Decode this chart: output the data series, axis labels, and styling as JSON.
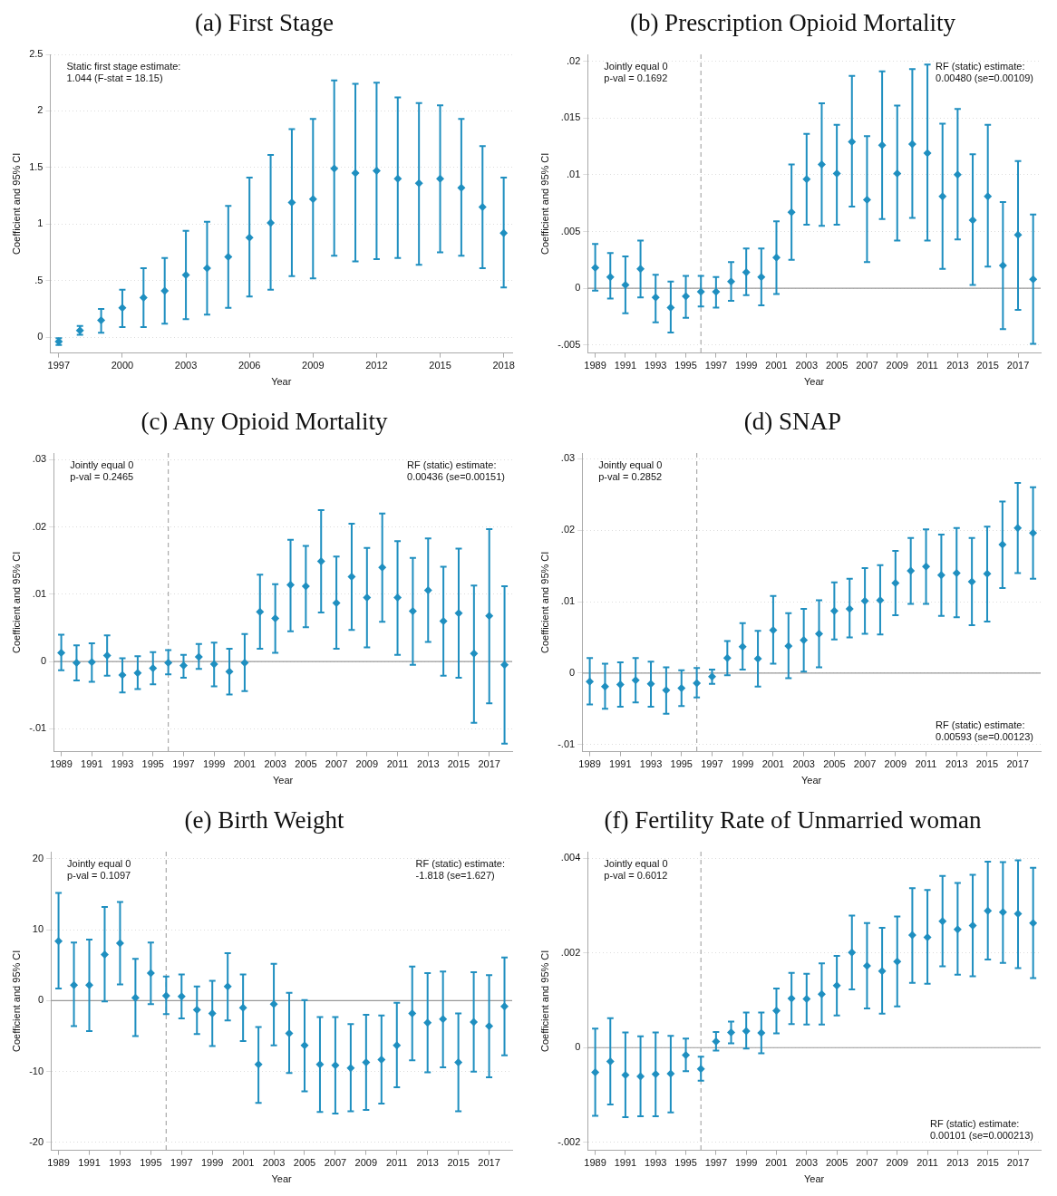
{
  "chart_data": [
    {
      "type": "scatter",
      "title": "(a) First Stage",
      "xlabel": "Year",
      "ylabel": "Coefficient and 95% CI",
      "color": "#1f8fc0",
      "marker": "diamond",
      "grid": "y",
      "x": [
        1997,
        1998,
        1999,
        2000,
        2001,
        2002,
        2003,
        2004,
        2005,
        2006,
        2007,
        2008,
        2009,
        2010,
        2011,
        2012,
        2013,
        2014,
        2015,
        2016,
        2017,
        2018
      ],
      "values": [
        -0.04,
        0.06,
        0.15,
        0.26,
        0.35,
        0.41,
        0.55,
        0.61,
        0.71,
        0.88,
        1.01,
        1.19,
        1.22,
        1.49,
        1.45,
        1.47,
        1.4,
        1.36,
        1.4,
        1.32,
        1.15,
        0.92
      ],
      "errors": [
        [
          -0.07,
          -0.01
        ],
        [
          0.02,
          0.1
        ],
        [
          0.04,
          0.25
        ],
        [
          0.09,
          0.42
        ],
        [
          0.09,
          0.61
        ],
        [
          0.12,
          0.7
        ],
        [
          0.16,
          0.94
        ],
        [
          0.2,
          1.02
        ],
        [
          0.26,
          1.16
        ],
        [
          0.36,
          1.41
        ],
        [
          0.42,
          1.61
        ],
        [
          0.54,
          1.84
        ],
        [
          0.52,
          1.93
        ],
        [
          0.72,
          2.27
        ],
        [
          0.67,
          2.24
        ],
        [
          0.69,
          2.25
        ],
        [
          0.7,
          2.12
        ],
        [
          0.64,
          2.07
        ],
        [
          0.75,
          2.05
        ],
        [
          0.72,
          1.93
        ],
        [
          0.61,
          1.69
        ],
        [
          0.44,
          1.41
        ]
      ],
      "xlim": [
        1996.6,
        2018.4
      ],
      "xticks": [
        1997,
        2000,
        2003,
        2006,
        2009,
        2012,
        2015,
        2018
      ],
      "ylim": [
        -0.14,
        2.5
      ],
      "yticks": [
        0,
        {
          "value": 0.5,
          "label": ".5"
        },
        1,
        1.5,
        2,
        2.5
      ],
      "annotations": [
        "Static first stage estimate:\n1.044 (F-stat = 18.15)"
      ]
    },
    {
      "type": "scatter",
      "title": "(b) Prescription Opioid Mortality",
      "xlabel": "Year",
      "ylabel": "Coefficient and 95% CI",
      "color": "#1f8fc0",
      "marker": "diamond",
      "grid": "y",
      "x": [
        1989,
        1990,
        1991,
        1992,
        1993,
        1994,
        1995,
        1996,
        1997,
        1998,
        1999,
        2000,
        2001,
        2002,
        2003,
        2004,
        2005,
        2006,
        2007,
        2008,
        2009,
        2010,
        2011,
        2012,
        2013,
        2014,
        2015,
        2016,
        2017,
        2018
      ],
      "values": [
        0.0018,
        0.001,
        0.0003,
        0.0017,
        -0.0008,
        -0.0017,
        -0.0007,
        -0.0003,
        -0.0003,
        0.0006,
        0.0014,
        0.001,
        0.0027,
        0.0067,
        0.0096,
        0.0109,
        0.0101,
        0.0129,
        0.0078,
        0.0126,
        0.0101,
        0.0127,
        0.0119,
        0.0081,
        0.01,
        0.006,
        0.0081,
        0.002,
        0.0047,
        0.0008
      ],
      "errors": [
        [
          -0.0002,
          0.0039
        ],
        [
          -0.0009,
          0.0031
        ],
        [
          -0.0022,
          0.0028
        ],
        [
          -0.0008,
          0.0042
        ],
        [
          -0.003,
          0.0012
        ],
        [
          -0.0039,
          0.0006
        ],
        [
          -0.0026,
          0.0011
        ],
        [
          -0.0016,
          0.0011
        ],
        [
          -0.0017,
          0.001
        ],
        [
          -0.0011,
          0.0023
        ],
        [
          -0.0006,
          0.0035
        ],
        [
          -0.0015,
          0.0035
        ],
        [
          -0.0005,
          0.0059
        ],
        [
          0.0025,
          0.0109
        ],
        [
          0.0056,
          0.0136
        ],
        [
          0.0055,
          0.0163
        ],
        [
          0.0056,
          0.0144
        ],
        [
          0.0072,
          0.0187
        ],
        [
          0.0023,
          0.0134
        ],
        [
          0.0061,
          0.0191
        ],
        [
          0.0042,
          0.0161
        ],
        [
          0.0062,
          0.0193
        ],
        [
          0.0042,
          0.0197
        ],
        [
          0.0017,
          0.0145
        ],
        [
          0.0043,
          0.0158
        ],
        [
          0.0003,
          0.0118
        ],
        [
          0.0019,
          0.0144
        ],
        [
          -0.0036,
          0.0076
        ],
        [
          -0.0019,
          0.0112
        ],
        [
          -0.0049,
          0.0065
        ]
      ],
      "xlim": [
        1988.5,
        2018.5
      ],
      "xticks": [
        1989,
        1991,
        1993,
        1995,
        1997,
        1999,
        2001,
        2003,
        2005,
        2007,
        2009,
        2011,
        2013,
        2015,
        2017
      ],
      "ylim": [
        -0.0057,
        0.0206
      ],
      "yticks": [
        {
          "value": -0.005,
          "label": "-.005"
        },
        0,
        {
          "value": 0.005,
          "label": ".005"
        },
        {
          "value": 0.01,
          "label": ".01"
        },
        {
          "value": 0.015,
          "label": ".015"
        },
        {
          "value": 0.02,
          "label": ".02"
        }
      ],
      "ref_lines": [
        {
          "axis": "y",
          "value": 0,
          "color": "#999999",
          "line_style": "solid"
        },
        {
          "axis": "x",
          "value": 1996,
          "color": "#aaaaaa",
          "line_style": "dashed"
        }
      ],
      "annotations": [
        "Jointly equal 0\np-val = 0.1692",
        "RF (static) estimate:\n0.00480 (se=0.00109)"
      ]
    },
    {
      "type": "scatter",
      "title": "(c) Any Opioid Mortality",
      "xlabel": "Year",
      "ylabel": "Coefficient and 95% CI",
      "color": "#1f8fc0",
      "marker": "diamond",
      "grid": "y",
      "x": [
        1989,
        1990,
        1991,
        1992,
        1993,
        1994,
        1995,
        1996,
        1997,
        1998,
        1999,
        2000,
        2001,
        2002,
        2003,
        2004,
        2005,
        2006,
        2007,
        2008,
        2009,
        2010,
        2011,
        2012,
        2013,
        2014,
        2015,
        2016,
        2017,
        2018
      ],
      "values": [
        0.0013,
        -0.0002,
        -0.0001,
        0.0009,
        -0.002,
        -0.0017,
        -0.001,
        -0.0002,
        -0.0006,
        0.0007,
        -0.0004,
        -0.0015,
        -0.0002,
        0.0074,
        0.0064,
        0.0114,
        0.0112,
        0.0149,
        0.0087,
        0.0126,
        0.0095,
        0.014,
        0.0095,
        0.0075,
        0.0106,
        0.006,
        0.0072,
        0.0012,
        0.0068,
        -0.0005
      ],
      "errors": [
        [
          -0.0013,
          0.004
        ],
        [
          -0.0028,
          0.0024
        ],
        [
          -0.003,
          0.0027
        ],
        [
          -0.0021,
          0.0039
        ],
        [
          -0.0046,
          0.0005
        ],
        [
          -0.0041,
          0.0008
        ],
        [
          -0.0034,
          0.0014
        ],
        [
          -0.0019,
          0.0017
        ],
        [
          -0.0024,
          0.001
        ],
        [
          -0.0011,
          0.0026
        ],
        [
          -0.0037,
          0.0028
        ],
        [
          -0.0049,
          0.0019
        ],
        [
          -0.0044,
          0.0041
        ],
        [
          0.0019,
          0.0129
        ],
        [
          0.0013,
          0.0115
        ],
        [
          0.0045,
          0.0181
        ],
        [
          0.0051,
          0.0172
        ],
        [
          0.0073,
          0.0225
        ],
        [
          0.0019,
          0.0156
        ],
        [
          0.0047,
          0.0205
        ],
        [
          0.0021,
          0.0169
        ],
        [
          0.0059,
          0.022
        ],
        [
          0.001,
          0.0179
        ],
        [
          -0.0005,
          0.0154
        ],
        [
          0.0029,
          0.0183
        ],
        [
          -0.0021,
          0.0141
        ],
        [
          -0.0024,
          0.0168
        ],
        [
          -0.0091,
          0.0113
        ],
        [
          -0.0062,
          0.0197
        ],
        [
          -0.0122,
          0.0112
        ]
      ],
      "xlim": [
        1988.5,
        2018.5
      ],
      "xticks": [
        1989,
        1991,
        1993,
        1995,
        1997,
        1999,
        2001,
        2003,
        2005,
        2007,
        2009,
        2011,
        2013,
        2015,
        2017
      ],
      "ylim": [
        -0.0134,
        0.031
      ],
      "yticks": [
        {
          "value": -0.01,
          "label": "-.01"
        },
        0,
        {
          "value": 0.01,
          "label": ".01"
        },
        {
          "value": 0.02,
          "label": ".02"
        },
        {
          "value": 0.03,
          "label": ".03"
        }
      ],
      "ref_lines": [
        {
          "axis": "y",
          "value": 0,
          "color": "#999999",
          "line_style": "solid"
        },
        {
          "axis": "x",
          "value": 1996,
          "color": "#aaaaaa",
          "line_style": "dashed"
        }
      ],
      "annotations": [
        "Jointly equal 0\np-val = 0.2465",
        "RF (static) estimate:\n0.00436 (se=0.00151)"
      ]
    },
    {
      "type": "scatter",
      "title": "(d) SNAP",
      "xlabel": "Year",
      "ylabel": "Coefficient and 95% CI",
      "color": "#1f8fc0",
      "marker": "diamond",
      "grid": "y",
      "x": [
        1989,
        1990,
        1991,
        1992,
        1993,
        1994,
        1995,
        1996,
        1997,
        1998,
        1999,
        2000,
        2001,
        2002,
        2003,
        2004,
        2005,
        2006,
        2007,
        2008,
        2009,
        2010,
        2011,
        2012,
        2013,
        2014,
        2015,
        2016,
        2017,
        2018
      ],
      "values": [
        -0.0012,
        -0.0019,
        -0.0016,
        -0.001,
        -0.0015,
        -0.0024,
        -0.0021,
        -0.0014,
        -0.0005,
        0.0021,
        0.0037,
        0.002,
        0.006,
        0.0038,
        0.0046,
        0.0055,
        0.0087,
        0.009,
        0.0101,
        0.0102,
        0.0126,
        0.0143,
        0.0149,
        0.0137,
        0.014,
        0.0128,
        0.0139,
        0.018,
        0.0203,
        0.0196
      ],
      "errors": [
        [
          -0.0044,
          0.0021
        ],
        [
          -0.005,
          0.0013
        ],
        [
          -0.0047,
          0.0015
        ],
        [
          -0.0041,
          0.0021
        ],
        [
          -0.0047,
          0.0016
        ],
        [
          -0.0057,
          0.0008
        ],
        [
          -0.0046,
          0.0004
        ],
        [
          -0.0034,
          0.0007
        ],
        [
          -0.0015,
          0.0005
        ],
        [
          -0.0003,
          0.0045
        ],
        [
          0.0005,
          0.007
        ],
        [
          -0.0019,
          0.0059
        ],
        [
          0.0013,
          0.0108
        ],
        [
          -0.0007,
          0.0084
        ],
        [
          0.0002,
          0.009
        ],
        [
          0.0008,
          0.0102
        ],
        [
          0.0047,
          0.0127
        ],
        [
          0.005,
          0.0132
        ],
        [
          0.0055,
          0.0147
        ],
        [
          0.0054,
          0.0151
        ],
        [
          0.0081,
          0.0171
        ],
        [
          0.0097,
          0.0189
        ],
        [
          0.0097,
          0.0201
        ],
        [
          0.008,
          0.0194
        ],
        [
          0.0078,
          0.0203
        ],
        [
          0.0067,
          0.0189
        ],
        [
          0.0072,
          0.0205
        ],
        [
          0.0119,
          0.024
        ],
        [
          0.014,
          0.0266
        ],
        [
          0.0132,
          0.026
        ]
      ],
      "xlim": [
        1988.5,
        2018.5
      ],
      "xticks": [
        1989,
        1991,
        1993,
        1995,
        1997,
        1999,
        2001,
        2003,
        2005,
        2007,
        2009,
        2011,
        2013,
        2015,
        2017
      ],
      "ylim": [
        -0.011,
        0.0308
      ],
      "yticks": [
        {
          "value": -0.01,
          "label": "-.01"
        },
        0,
        {
          "value": 0.01,
          "label": ".01"
        },
        {
          "value": 0.02,
          "label": ".02"
        },
        {
          "value": 0.03,
          "label": ".03"
        }
      ],
      "ref_lines": [
        {
          "axis": "y",
          "value": 0,
          "color": "#999999",
          "line_style": "solid"
        },
        {
          "axis": "x",
          "value": 1996,
          "color": "#aaaaaa",
          "line_style": "dashed"
        }
      ],
      "annotations": [
        "Jointly equal 0\np-val = 0.2852",
        "RF (static) estimate:\n0.00593 (se=0.00123)"
      ]
    },
    {
      "type": "scatter",
      "title": "(e) Birth Weight",
      "xlabel": "Year",
      "ylabel": "Coefficient and 95% CI",
      "color": "#1f8fc0",
      "marker": "diamond",
      "grid": "y",
      "x": [
        1989,
        1990,
        1991,
        1992,
        1993,
        1994,
        1995,
        1996,
        1997,
        1998,
        1999,
        2000,
        2001,
        2002,
        2003,
        2004,
        2005,
        2006,
        2007,
        2008,
        2009,
        2010,
        2011,
        2012,
        2013,
        2014,
        2015,
        2016,
        2017,
        2018
      ],
      "values": [
        8.4,
        2.2,
        2.2,
        6.5,
        8.1,
        0.4,
        3.9,
        0.7,
        0.6,
        -1.3,
        -1.8,
        2.0,
        -1.0,
        -9.0,
        -0.5,
        -4.6,
        -6.3,
        -9.0,
        -9.1,
        -9.5,
        -8.7,
        -8.3,
        -6.3,
        -1.8,
        -3.1,
        -2.6,
        -8.7,
        -3.0,
        -3.6,
        -0.8
      ],
      "errors": [
        [
          1.7,
          15.2
        ],
        [
          -3.6,
          8.2
        ],
        [
          -4.3,
          8.6
        ],
        [
          -0.1,
          13.2
        ],
        [
          2.3,
          13.9
        ],
        [
          -5.0,
          5.9
        ],
        [
          -0.5,
          8.2
        ],
        [
          -1.9,
          3.4
        ],
        [
          -2.5,
          3.7
        ],
        [
          -4.7,
          2.0
        ],
        [
          -6.4,
          2.8
        ],
        [
          -2.8,
          6.7
        ],
        [
          -5.7,
          3.7
        ],
        [
          -14.4,
          -3.7
        ],
        [
          -6.3,
          5.2
        ],
        [
          -10.2,
          1.1
        ],
        [
          -12.8,
          0.1
        ],
        [
          -15.7,
          -2.3
        ],
        [
          -15.9,
          -2.3
        ],
        [
          -15.6,
          -3.3
        ],
        [
          -15.4,
          -2.0
        ],
        [
          -14.5,
          -2.1
        ],
        [
          -12.2,
          -0.3
        ],
        [
          -8.4,
          4.8
        ],
        [
          -10.1,
          3.9
        ],
        [
          -9.4,
          4.1
        ],
        [
          -15.6,
          -1.8
        ],
        [
          -10.0,
          4.0
        ],
        [
          -10.8,
          3.6
        ],
        [
          -7.7,
          6.1
        ]
      ],
      "xlim": [
        1988.5,
        2018.5
      ],
      "xticks": [
        1989,
        1991,
        1993,
        1995,
        1997,
        1999,
        2001,
        2003,
        2005,
        2007,
        2009,
        2011,
        2013,
        2015,
        2017
      ],
      "ylim": [
        -21.1,
        21
      ],
      "yticks": [
        -20,
        -10,
        0,
        10,
        20
      ],
      "ref_lines": [
        {
          "axis": "y",
          "value": 0,
          "color": "#999999",
          "line_style": "solid"
        },
        {
          "axis": "x",
          "value": 1996,
          "color": "#aaaaaa",
          "line_style": "dashed"
        }
      ],
      "annotations": [
        "Jointly equal 0\np-val = 0.1097",
        "RF (static) estimate:\n-1.818 (se=1.627)"
      ]
    },
    {
      "type": "scatter",
      "title": "(f) Fertility Rate of Unmarried woman",
      "xlabel": "Year",
      "ylabel": "Coefficient and 95% CI",
      "color": "#1f8fc0",
      "marker": "diamond",
      "grid": "y",
      "x": [
        1989,
        1990,
        1991,
        1992,
        1993,
        1994,
        1995,
        1996,
        1997,
        1998,
        1999,
        2000,
        2001,
        2002,
        2003,
        2004,
        2005,
        2006,
        2007,
        2008,
        2009,
        2010,
        2011,
        2012,
        2013,
        2014,
        2015,
        2016,
        2017,
        2018
      ],
      "values": [
        -0.00052,
        -0.00029,
        -0.00058,
        -0.00061,
        -0.00056,
        -0.00055,
        -0.00016,
        -0.00045,
        0.00013,
        0.00032,
        0.00035,
        0.00031,
        0.00078,
        0.00104,
        0.00103,
        0.00113,
        0.00131,
        0.00201,
        0.00173,
        0.00162,
        0.00182,
        0.00238,
        0.00233,
        0.00267,
        0.0025,
        0.00258,
        0.00289,
        0.00286,
        0.00283,
        0.00263
      ],
      "errors": [
        [
          -0.00144,
          0.0004
        ],
        [
          -0.0012,
          0.00062
        ],
        [
          -0.00147,
          0.00032
        ],
        [
          -0.00145,
          0.00024
        ],
        [
          -0.00145,
          0.00032
        ],
        [
          -0.00137,
          0.00025
        ],
        [
          -0.0005,
          0.00019
        ],
        [
          -0.0007,
          -0.00019
        ],
        [
          -6e-05,
          0.00033
        ],
        [
          9e-05,
          0.00055
        ],
        [
          -2e-05,
          0.00074
        ],
        [
          -0.00012,
          0.00074
        ],
        [
          0.0003,
          0.00125
        ],
        [
          0.0005,
          0.00158
        ],
        [
          0.00049,
          0.00156
        ],
        [
          0.00049,
          0.00178
        ],
        [
          0.00068,
          0.00194
        ],
        [
          0.00123,
          0.00279
        ],
        [
          0.00083,
          0.00263
        ],
        [
          0.00072,
          0.00253
        ],
        [
          0.00087,
          0.00277
        ],
        [
          0.00137,
          0.00337
        ],
        [
          0.00135,
          0.00333
        ],
        [
          0.00172,
          0.00363
        ],
        [
          0.00154,
          0.00348
        ],
        [
          0.00151,
          0.00365
        ],
        [
          0.00186,
          0.00393
        ],
        [
          0.00179,
          0.00392
        ],
        [
          0.00168,
          0.00396
        ],
        [
          0.00147,
          0.0038
        ]
      ],
      "xlim": [
        1988.5,
        2018.5
      ],
      "xticks": [
        1989,
        1991,
        1993,
        1995,
        1997,
        1999,
        2001,
        2003,
        2005,
        2007,
        2009,
        2011,
        2013,
        2015,
        2017
      ],
      "ylim": [
        -0.00217,
        0.00414
      ],
      "yticks": [
        {
          "value": -0.002,
          "label": "-.002"
        },
        0,
        {
          "value": 0.002,
          "label": ".002"
        },
        {
          "value": 0.004,
          "label": ".004"
        }
      ],
      "ref_lines": [
        {
          "axis": "y",
          "value": 0,
          "color": "#999999",
          "line_style": "solid"
        },
        {
          "axis": "x",
          "value": 1996,
          "color": "#aaaaaa",
          "line_style": "dashed"
        }
      ],
      "annotations": [
        "Jointly equal 0\np-val = 0.6012",
        "RF (static) estimate:\n0.00101 (se=0.000213)"
      ]
    }
  ]
}
